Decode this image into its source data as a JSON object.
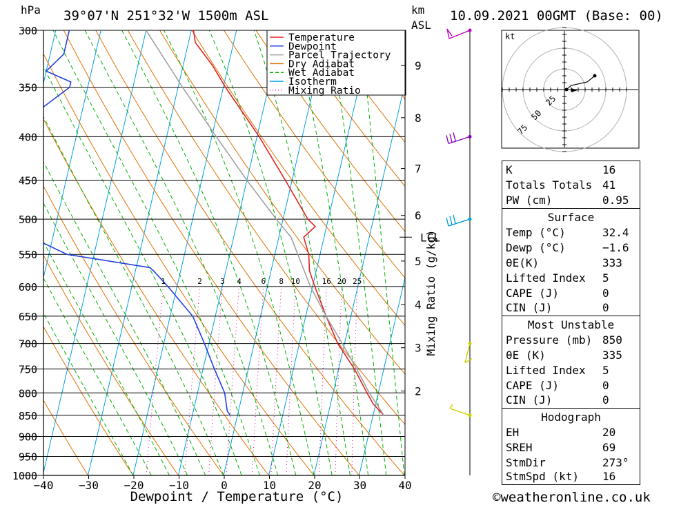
{
  "header": {
    "pressure_unit": "hPa",
    "location": "39°07'N 251°32'W 1500m ASL",
    "km_unit": "km",
    "asl_unit": "ASL",
    "datetime": "10.09.2021 00GMT (Base: 00)"
  },
  "footer": {
    "copyright": "©weatheronline.co.uk"
  },
  "legend": {
    "items": [
      {
        "label": "Temperature",
        "color": "#e02020",
        "style": "solid"
      },
      {
        "label": "Dewpoint",
        "color": "#2040e0",
        "style": "solid"
      },
      {
        "label": "Parcel Trajectory",
        "color": "#a0a0a0",
        "style": "solid"
      },
      {
        "label": "Dry Adiabat",
        "color": "#e07000",
        "style": "solid"
      },
      {
        "label": "Wet Adiabat",
        "color": "#00b000",
        "style": "dashed"
      },
      {
        "label": "Isotherm",
        "color": "#00a0e0",
        "style": "solid"
      },
      {
        "label": "Mixing Ratio",
        "color": "#e000a0",
        "style": "dotted"
      }
    ]
  },
  "chart_data": {
    "type": "line",
    "subtype": "skew-T log-P",
    "xlabel": "Dewpoint / Temperature (°C)",
    "ylabel": "hPa",
    "xlim": [
      -40,
      40
    ],
    "ylim": [
      1000,
      300
    ],
    "x_ticks": [
      "−40",
      "−30",
      "−20",
      "−10",
      "0",
      "10",
      "20",
      "30",
      "40"
    ],
    "x_tick_values": [
      -40,
      -30,
      -20,
      -10,
      0,
      10,
      20,
      30,
      40
    ],
    "pressure_levels": [
      300,
      350,
      400,
      450,
      500,
      550,
      600,
      650,
      700,
      750,
      800,
      850,
      900,
      950,
      1000
    ],
    "height_axis_label": "km ASL",
    "height_ticks": [
      {
        "label": "9",
        "p": 330
      },
      {
        "label": "8",
        "p": 380
      },
      {
        "label": "7",
        "p": 436
      },
      {
        "label": "6",
        "p": 495
      },
      {
        "label": "5",
        "p": 560
      },
      {
        "label": "4",
        "p": 630
      },
      {
        "label": "3",
        "p": 708
      },
      {
        "label": "2",
        "p": 796
      }
    ],
    "lcl": {
      "label": "LCL",
      "p": 525
    },
    "mixing_ratio_label": "Mixing Ratio (g/kg)",
    "mixing_ratio_values": [
      "1",
      "2",
      "3",
      "4",
      "6",
      "8",
      "10",
      "16",
      "20",
      "25"
    ],
    "mixing_ratio_numbers": [
      1,
      2,
      3,
      4,
      6,
      8,
      10,
      16,
      20,
      25
    ],
    "series": [
      {
        "name": "Temperature",
        "color": "#e02020",
        "points": [
          [
            850,
            32.4
          ],
          [
            825,
            29.5
          ],
          [
            800,
            27.5
          ],
          [
            750,
            23.5
          ],
          [
            700,
            18.5
          ],
          [
            650,
            14.5
          ],
          [
            600,
            10.5
          ],
          [
            575,
            8.5
          ],
          [
            550,
            7.5
          ],
          [
            525,
            5.5
          ],
          [
            510,
            7.5
          ],
          [
            500,
            5.5
          ],
          [
            450,
            -1.5
          ],
          [
            400,
            -9.5
          ],
          [
            350,
            -19.5
          ],
          [
            330,
            -23.5
          ],
          [
            310,
            -28.5
          ],
          [
            300,
            -29.5
          ]
        ]
      },
      {
        "name": "Dewpoint",
        "color": "#2040e0",
        "points": [
          [
            850,
            -1.6
          ],
          [
            840,
            -2.5
          ],
          [
            800,
            -4
          ],
          [
            750,
            -7.5
          ],
          [
            700,
            -11
          ],
          [
            650,
            -15
          ],
          [
            600,
            -22
          ],
          [
            575,
            -26
          ],
          [
            570,
            -27
          ],
          [
            550,
            -46
          ],
          [
            530,
            -53
          ],
          [
            505,
            -69
          ],
          [
            460,
            -68
          ],
          [
            400,
            -66
          ],
          [
            350,
            -54
          ],
          [
            345,
            -54
          ],
          [
            335,
            -60
          ],
          [
            320,
            -57
          ],
          [
            300,
            -57
          ]
        ]
      },
      {
        "name": "Parcel Trajectory",
        "color": "#a0a0a0",
        "points": [
          [
            850,
            32.4
          ],
          [
            800,
            28
          ],
          [
            750,
            24
          ],
          [
            700,
            19.5
          ],
          [
            650,
            14.5
          ],
          [
            600,
            9.5
          ],
          [
            560,
            6
          ],
          [
            525,
            2.7
          ],
          [
            500,
            -1.5
          ],
          [
            450,
            -10
          ],
          [
            400,
            -19
          ],
          [
            350,
            -29
          ],
          [
            300,
            -40
          ]
        ]
      }
    ],
    "wind_barbs": [
      {
        "p": 300,
        "color": "#c000c0"
      },
      {
        "p": 400,
        "color": "#8000c0"
      },
      {
        "p": 500,
        "color": "#00a0e0"
      },
      {
        "p": 700,
        "color": "#d0d000"
      },
      {
        "p": 850,
        "color": "#d0d000"
      }
    ],
    "hodograph": {
      "unit": "kt",
      "ring_labels": [
        "25",
        "50",
        "75"
      ]
    }
  },
  "indices": {
    "k_label": "K",
    "k_value": "16",
    "tt_label": "Totals Totals",
    "tt_value": "41",
    "pw_label": "PW (cm)",
    "pw_value": "0.95",
    "surface_title": "Surface",
    "s_temp_label": "Temp (°C)",
    "s_temp_value": "32.4",
    "s_dewp_label": "Dewp (°C)",
    "s_dewp_value": "−1.6",
    "s_thetae_label": "θE(K)",
    "s_thetae_value": "333",
    "s_li_label": "Lifted Index",
    "s_li_value": "5",
    "s_cape_label": "CAPE (J)",
    "s_cape_value": "0",
    "s_cin_label": "CIN (J)",
    "s_cin_value": "0",
    "mu_title": "Most Unstable",
    "mu_press_label": "Pressure (mb)",
    "mu_press_value": "850",
    "mu_thetae_label": "θE (K)",
    "mu_thetae_value": "335",
    "mu_li_label": "Lifted Index",
    "mu_li_value": "5",
    "mu_cape_label": "CAPE (J)",
    "mu_cape_value": "0",
    "mu_cin_label": "CIN (J)",
    "mu_cin_value": "0",
    "hodo_title": "Hodograph",
    "eh_label": "EH",
    "eh_value": "20",
    "sreh_label": "SREH",
    "sreh_value": "69",
    "stmdir_label": "StmDir",
    "stmdir_value": "273°",
    "stmspd_label": "StmSpd (kt)",
    "stmspd_value": "16"
  }
}
